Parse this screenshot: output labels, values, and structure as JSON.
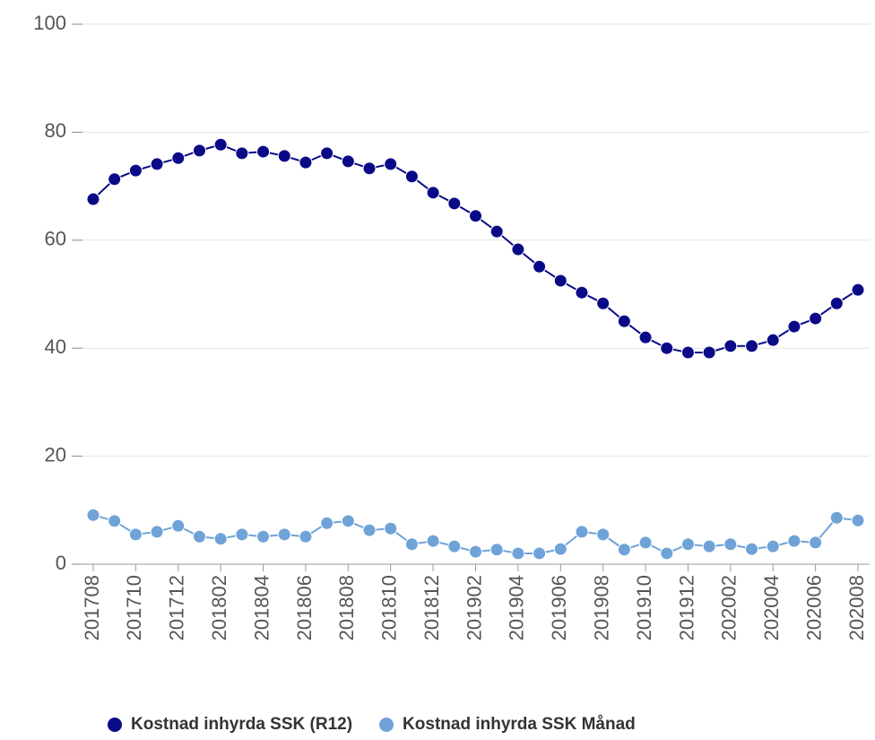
{
  "chart_data": {
    "type": "line",
    "categories": [
      "201708",
      null,
      "201710",
      null,
      "201712",
      null,
      "201802",
      null,
      "201804",
      null,
      "201806",
      null,
      "201808",
      null,
      "201810",
      null,
      "201812",
      null,
      "201902",
      null,
      "201904",
      null,
      "201906",
      null,
      "201908",
      null,
      "201910",
      null,
      "201912",
      null,
      "202002",
      null,
      "202004",
      null,
      "202006",
      null,
      "202008"
    ],
    "series": [
      {
        "name": "Kostnad inhyrda SSK (R12)",
        "color": "#0a0a87",
        "values": [
          67.6,
          71.3,
          72.9,
          74.1,
          75.2,
          76.6,
          77.7,
          76.1,
          76.4,
          75.6,
          74.4,
          76.1,
          74.6,
          73.3,
          74.1,
          71.8,
          68.8,
          66.8,
          64.5,
          61.6,
          58.3,
          55.1,
          52.5,
          50.3,
          48.3,
          45.0,
          42.0,
          40.0,
          39.2,
          39.2,
          40.4,
          40.4,
          41.5,
          44.0,
          45.5,
          48.3,
          50.8
        ]
      },
      {
        "name": "Kostnad inhyrda SSK Månad",
        "color": "#6fa3d8",
        "values": [
          9.1,
          8.0,
          5.5,
          6.0,
          7.1,
          5.1,
          4.7,
          5.5,
          5.1,
          5.5,
          5.1,
          7.6,
          8.0,
          6.3,
          6.6,
          3.7,
          4.3,
          3.3,
          2.3,
          2.7,
          2.0,
          2.0,
          2.8,
          6.0,
          5.5,
          2.7,
          4.0,
          2.0,
          3.7,
          3.3,
          3.7,
          2.8,
          3.3,
          4.3,
          4.0,
          8.6,
          8.1
        ]
      }
    ],
    "ylim": [
      0,
      100
    ],
    "yticks": [
      0,
      20,
      40,
      60,
      80,
      100
    ],
    "grid": true,
    "legend": "bottom"
  }
}
